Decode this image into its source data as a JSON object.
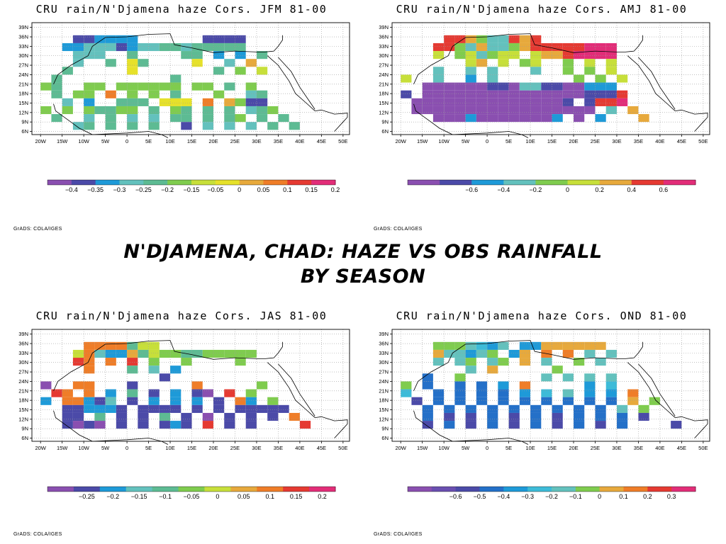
{
  "slide": {
    "title_line1": "N'Djamena, Chad: Haze vs Obs Rainfall",
    "title_line2": "by season"
  },
  "chart_data": [
    {
      "type": "heatmap",
      "title": "CRU rain/N'Djamena haze Cors. JFM 81-00",
      "footer": "GrADS: COLA/IGES",
      "x_ticks": [
        "20W",
        "15W",
        "10W",
        "5W",
        "0",
        "5E",
        "10E",
        "15E",
        "20E",
        "25E",
        "30E",
        "35E",
        "40E",
        "45E",
        "50E"
      ],
      "y_ticks": [
        "39N",
        "36N",
        "33N",
        "30N",
        "27N",
        "24N",
        "21N",
        "18N",
        "15N",
        "12N",
        "9N",
        "6N"
      ],
      "colorbar": {
        "colors": [
          "#8a4fb0",
          "#4b4aa8",
          "#1e9ad8",
          "#63c1bd",
          "#5dbb93",
          "#7fcc4e",
          "#c7df3a",
          "#e6e12a",
          "#e7a93c",
          "#ef7d28",
          "#e53a32",
          "#e22d78"
        ],
        "labels": [
          "-0.4",
          "-0.35",
          "-0.3",
          "-0.25",
          "-0.2",
          "-0.15",
          "-0.05",
          "0",
          "0.05",
          "0.1",
          "0.15",
          "0.2"
        ]
      },
      "grid": {
        "lon_start": -20,
        "lat_start": 39,
        "cell_deg": 2.5
      },
      "rows": [
        "......................",
        "...112222......1111..",
        "..22333123344344444...",
        "...333..4....44.2.2.4.",
        "...3..4.74....7..3.8...",
        "..4.....7.......4.5.6...",
        ".4..........4.........",
        "54..55.555555.55.4.5....",
        ".4.55.9.5.5.4...5..34...",
        "..3.2..444.777.9.8511....",
        "5.5.54455.4.54.4.4.345..",
        ".4..3.4.3.3.44.4.45.4.4",
        "...34.4.4.4..1.3.3.3.4.4"
      ]
    },
    {
      "type": "heatmap",
      "title": "CRU rain/N'Djamena haze Cors. AMJ 81-00",
      "footer": "GrADS: COLA/IGES",
      "x_ticks": [
        "20W",
        "15W",
        "10W",
        "5W",
        "0",
        "5E",
        "10E",
        "15E",
        "20E",
        "25E",
        "30E",
        "35E",
        "40E",
        "45E",
        "50E"
      ],
      "y_ticks": [
        "39N",
        "36N",
        "33N",
        "30N",
        "27N",
        "24N",
        "21N",
        "18N",
        "15N",
        "12N",
        "9N",
        "6N"
      ],
      "colorbar": {
        "colors": [
          "#8a4fb0",
          "#4b4aa8",
          "#1e9ad8",
          "#63c1bd",
          "#7fcc4e",
          "#c7df3a",
          "#e7a93c",
          "#e53a32",
          "#e22d78"
        ],
        "labels": [
          "-0.6",
          "-0.4",
          "-0.2",
          "0",
          "0.2",
          "0.4",
          "0.6"
        ]
      },
      "grid": {
        "lon_start": -20,
        "lat_start": 39,
        "cell_deg": 2.5
      },
      "rows": [
        "......................",
        "....776433767.........",
        "...77436334677777888..",
        "...5.453455.56678888..",
        "......56.5.45..4.5.5..",
        "...3..3.3...3..4.4.5..",
        "5..3..2.3.......4.4.5.",
        "..000000110331100222.",
        "1.0000000000000001117..",
        ".000000000000001.1778..",
        ".00000000000000000.3.6.",
        "...000200000002.0.2...6"
      ]
    },
    {
      "type": "heatmap",
      "title": "CRU rain/N'Djamena haze Cors. JAS 81-00",
      "footer": "GrADS: COLA/IGES",
      "x_ticks": [
        "20W",
        "15W",
        "10W",
        "5W",
        "0",
        "5E",
        "10E",
        "15E",
        "20E",
        "25E",
        "30E",
        "35E",
        "40E",
        "45E",
        "50E"
      ],
      "y_ticks": [
        "39N",
        "36N",
        "33N",
        "30N",
        "27N",
        "24N",
        "21N",
        "18N",
        "15N",
        "12N",
        "9N",
        "6N"
      ],
      "colorbar": {
        "colors": [
          "#8a4fb0",
          "#4b4aa8",
          "#1e9ad8",
          "#63c1bd",
          "#5dbb93",
          "#7fcc4e",
          "#c7df3a",
          "#e7a93c",
          "#ef7d28",
          "#e53a32",
          "#e22d78"
        ],
        "labels": [
          "-0.25",
          "-0.2",
          "-0.15",
          "-0.1",
          "-0.05",
          "0",
          "0.05",
          "0.1",
          "0.15",
          "0.2"
        ]
      },
      "grid": {
        "lon_start": -20,
        "lat_start": 39,
        "cell_deg": 2.5
      },
      "rows": [
        "......................",
        "....8888466...........",
        "...68322746554455555.",
        "...98.8.9.5..5....5...",
        "....8...4.3.2.........",
        "...........1..........",
        "0..88...1.....8.....5.",
        ".98.8.2.4.1.2.10.9.5..",
        "2.88213.1.2.2.2.1.82.5..",
        "..112221.1111.1.1.11111.",
        "..11.4.1.1.4.1.0.1.1.1.8",
        "..1010.1.1.121.9.1.1....9"
      ]
    },
    {
      "type": "heatmap",
      "title": "CRU rain/N'Djamena haze Cors. OND 81-00",
      "footer": "GrADS: COLA/IGES",
      "x_ticks": [
        "20W",
        "15W",
        "10W",
        "5W",
        "0",
        "5E",
        "10E",
        "15E",
        "20E",
        "25E",
        "30E",
        "35E",
        "40E",
        "45E",
        "50E"
      ],
      "y_ticks": [
        "39N",
        "36N",
        "33N",
        "30N",
        "27N",
        "24N",
        "21N",
        "18N",
        "15N",
        "12N",
        "9N",
        "6N"
      ],
      "colorbar": {
        "colors": [
          "#8a4fb0",
          "#6a4fb0",
          "#4b4aa8",
          "#2470c8",
          "#1e9ad8",
          "#3dbbd8",
          "#63c1bd",
          "#7fcc4e",
          "#e7a93c",
          "#ef7d28",
          "#e53a32",
          "#e22d78"
        ],
        "labels": [
          "-0.6",
          "-0.5",
          "-0.4",
          "-0.3",
          "-0.2",
          "-0.1",
          "0",
          "0.1",
          "0.2",
          "0.3"
        ]
      },
      "grid": {
        "lon_start": -20,
        "lat_start": 39,
        "cell_deg": 2.5
      },
      "rows": [
        "......................",
        "...7776546.44888888...",
        "...866467.48.9.9.6.6..",
        "...6.67.67.8.6..7.6...",
        "......6.8.....7.....",
        "..3..7.......6.6.6.6..",
        "7.3..3.3.4.9.....4.5..",
        "5..3.3.3.3.4.5.6.4.4.9.",
        ".2.3.3.3.3.3.3.3.3.3.8.7",
        "..3.3.3.3.3.3.3.3.3.6.7..",
        "..3.2.2.3.2.3.2.3.3.3.2.",
        "..2.3.2.3.2.3.2.3.2.3....2"
      ]
    }
  ]
}
